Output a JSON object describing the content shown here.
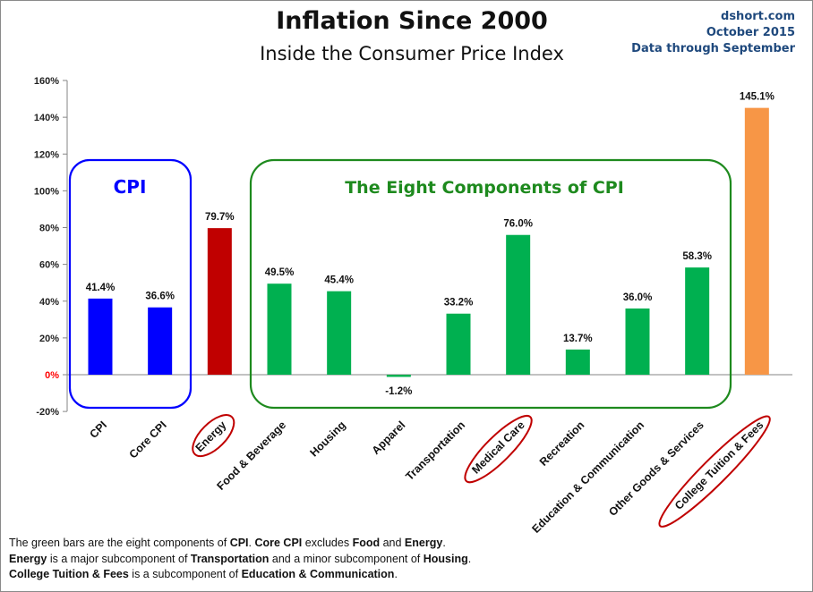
{
  "header": {
    "title": "Inflation Since 2000",
    "subtitle": "Inside the Consumer Price Index",
    "source": "dshort.com",
    "date": "October 2015",
    "data_through": "Data through September"
  },
  "colors": {
    "blue": "#0000ff",
    "red": "#c00000",
    "green": "#00b050",
    "orange": "#f79646",
    "box_blue": "#0000ff",
    "box_green": "#1e8a1e",
    "ellipse_red": "#c00000"
  },
  "chart_data": {
    "type": "bar",
    "title": "Inflation Since 2000",
    "subtitle": "Inside the Consumer Price Index",
    "categories": [
      "CPI",
      "Core CPI",
      "Energy",
      "Food & Beverage",
      "Housing",
      "Apparel",
      "Transportation",
      "Medical Care",
      "Recreation",
      "Education & Communication",
      "Other Goods & Services",
      "College Tuition & Fees"
    ],
    "values": [
      41.4,
      36.6,
      79.7,
      49.5,
      45.4,
      -1.2,
      33.2,
      76.0,
      13.7,
      36.0,
      58.3,
      145.1
    ],
    "data_labels": [
      "41.4%",
      "36.6%",
      "79.7%",
      "49.5%",
      "45.4%",
      "-1.2%",
      "33.2%",
      "76.0%",
      "13.7%",
      "36.0%",
      "58.3%",
      "145.1%"
    ],
    "bar_colors": [
      "blue",
      "blue",
      "red",
      "green",
      "green",
      "green",
      "green",
      "green",
      "green",
      "green",
      "green",
      "orange"
    ],
    "highlighted": [
      "Energy",
      "Medical Care",
      "College Tuition & Fees"
    ],
    "y_ticks": [
      -20,
      0,
      20,
      40,
      60,
      80,
      100,
      120,
      140,
      160
    ],
    "y_tick_labels": [
      "-20%",
      "0%",
      "20%",
      "40%",
      "60%",
      "80%",
      "100%",
      "120%",
      "140%",
      "160%"
    ],
    "ylim": [
      -20,
      160
    ],
    "grid": false,
    "legend": "none",
    "annotations": {
      "cpi_group_label": "CPI",
      "components_group_label": "The Eight Components of CPI"
    }
  },
  "notes": {
    "line1": [
      {
        "text": "The green bars are the eight components of ",
        "bold": false
      },
      {
        "text": "CPI",
        "bold": true
      },
      {
        "text": ". ",
        "bold": false
      },
      {
        "text": "Core CPI",
        "bold": true
      },
      {
        "text": " excludes ",
        "bold": false
      },
      {
        "text": "Food",
        "bold": true
      },
      {
        "text": " and ",
        "bold": false
      },
      {
        "text": "Energy",
        "bold": true
      },
      {
        "text": ".",
        "bold": false
      }
    ],
    "line2": [
      {
        "text": "Energy",
        "bold": true
      },
      {
        "text": " is a  major subcomponent of ",
        "bold": false
      },
      {
        "text": "Transportation",
        "bold": true
      },
      {
        "text": " and a minor subcomponent of ",
        "bold": false
      },
      {
        "text": "Housing",
        "bold": true
      },
      {
        "text": ".",
        "bold": false
      }
    ],
    "line3": [
      {
        "text": "College Tuition & Fees",
        "bold": true
      },
      {
        "text": " is a subcomponent of ",
        "bold": false
      },
      {
        "text": "Education & Communication",
        "bold": true
      },
      {
        "text": ".",
        "bold": false
      }
    ]
  }
}
